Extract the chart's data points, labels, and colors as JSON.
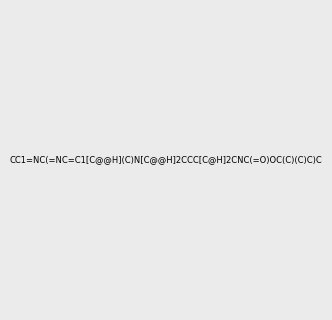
{
  "smiles": "CC1=NC(=NC=C1[C@@H](C)N[C@@H]2CCC[C@H]2CNC(=O)OC(C)(C)C)C",
  "title": "",
  "background_color": "#ebebeb",
  "img_size": [
    300,
    300
  ],
  "atom_colors": {
    "N": "#0000ff",
    "O": "#ff0000",
    "C": "#000000",
    "H_on_N": "#008080"
  }
}
